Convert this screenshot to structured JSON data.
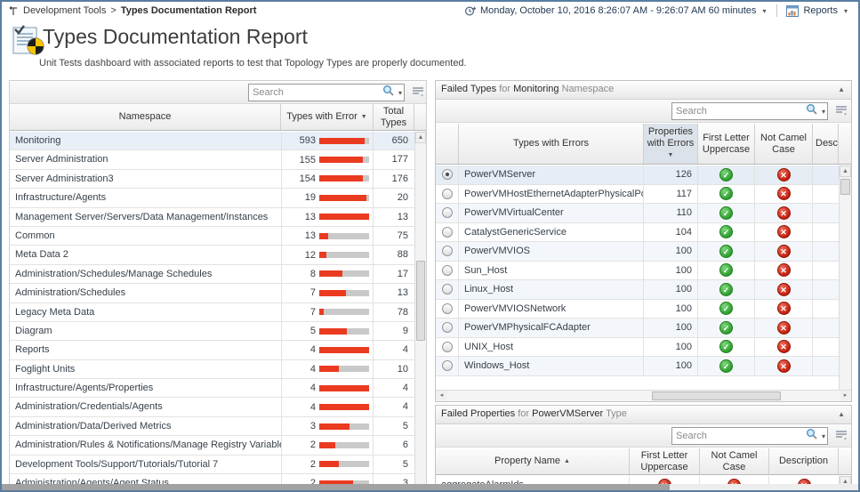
{
  "breadcrumb": {
    "parent": "Development Tools",
    "separator": ">",
    "current": "Types Documentation Report"
  },
  "topbar": {
    "time_range": "Monday, October 10, 2016 8:26:07 AM - 9:26:07 AM 60 minutes",
    "reports_label": "Reports"
  },
  "header": {
    "title": "Types Documentation Report",
    "subtitle": "Unit Tests dashboard with associated reports to test that Topology Types are properly documented."
  },
  "icons": {
    "sort_desc": "▼",
    "sort_asc": "▲",
    "collapse": "▲",
    "caret": "▾",
    "scroll_up": "▲",
    "scroll_left": "◂",
    "scroll_right": "▸",
    "pass_glyph": "✓",
    "fail_glyph": "✕"
  },
  "colors": {
    "bar_red": "#ea3a20",
    "bar_track": "#c9c9c9",
    "pass_green": "#2da02d",
    "fail_red": "#c41f0e",
    "selection": "#e6edf4",
    "frame_border": "#5a7da0"
  },
  "namespace_table": {
    "search_placeholder": "Search",
    "columns": {
      "namespace": "Namespace",
      "types_with_error": "Types with Error",
      "total_types_line1": "Total",
      "total_types_line2": "Types"
    },
    "sort": {
      "column": "types_with_error",
      "direction": "desc"
    },
    "rows": [
      {
        "namespace": "Monitoring",
        "types_with_error": 593,
        "total_types": 650,
        "selected": true
      },
      {
        "namespace": "Server Administration",
        "types_with_error": 155,
        "total_types": 177,
        "selected": false
      },
      {
        "namespace": "Server Administration3",
        "types_with_error": 154,
        "total_types": 176,
        "selected": false
      },
      {
        "namespace": "Infrastructure/Agents",
        "types_with_error": 19,
        "total_types": 20,
        "selected": false
      },
      {
        "namespace": "Management Server/Servers/Data Management/Instances",
        "types_with_error": 13,
        "total_types": 13,
        "selected": false
      },
      {
        "namespace": "Common",
        "types_with_error": 13,
        "total_types": 75,
        "selected": false
      },
      {
        "namespace": "Meta Data 2",
        "types_with_error": 12,
        "total_types": 88,
        "selected": false
      },
      {
        "namespace": "Administration/Schedules/Manage Schedules",
        "types_with_error": 8,
        "total_types": 17,
        "selected": false
      },
      {
        "namespace": "Administration/Schedules",
        "types_with_error": 7,
        "total_types": 13,
        "selected": false
      },
      {
        "namespace": "Legacy Meta Data",
        "types_with_error": 7,
        "total_types": 78,
        "selected": false
      },
      {
        "namespace": "Diagram",
        "types_with_error": 5,
        "total_types": 9,
        "selected": false
      },
      {
        "namespace": "Reports",
        "types_with_error": 4,
        "total_types": 4,
        "selected": false
      },
      {
        "namespace": "Foglight Units",
        "types_with_error": 4,
        "total_types": 10,
        "selected": false
      },
      {
        "namespace": "Infrastructure/Agents/Properties",
        "types_with_error": 4,
        "total_types": 4,
        "selected": false
      },
      {
        "namespace": "Administration/Credentials/Agents",
        "types_with_error": 4,
        "total_types": 4,
        "selected": false
      },
      {
        "namespace": "Administration/Data/Derived Metrics",
        "types_with_error": 3,
        "total_types": 5,
        "selected": false
      },
      {
        "namespace": "Administration/Rules & Notifications/Manage Registry Variables",
        "types_with_error": 2,
        "total_types": 6,
        "selected": false
      },
      {
        "namespace": "Development Tools/Support/Tutorials/Tutorial 7",
        "types_with_error": 2,
        "total_types": 5,
        "selected": false
      },
      {
        "namespace": "Administration/Agents/Agent Status",
        "types_with_error": 2,
        "total_types": 3,
        "selected": false
      }
    ]
  },
  "failed_types_panel": {
    "title": {
      "prefix": "Failed Types",
      "for": "for",
      "name": "Monitoring",
      "suffix": "Namespace"
    },
    "search_placeholder": "Search",
    "columns": {
      "types": "Types with Errors",
      "props_line1": "Properties",
      "props_line2": "with Errors",
      "first_line1": "First Letter",
      "first_line2": "Uppercase",
      "camel_line1": "Not Camel",
      "camel_line2": "Case",
      "desc": "Description"
    },
    "sort": {
      "column": "props",
      "direction": "desc"
    },
    "rows": [
      {
        "name": "PowerVMServer",
        "properties_with_errors": 126,
        "first_letter_uppercase": "pass",
        "not_camel_case": "fail",
        "selected": true
      },
      {
        "name": "PowerVMHostEthernetAdapterPhysicalPort",
        "properties_with_errors": 117,
        "first_letter_uppercase": "pass",
        "not_camel_case": "fail",
        "selected": false
      },
      {
        "name": "PowerVMVirtualCenter",
        "properties_with_errors": 110,
        "first_letter_uppercase": "pass",
        "not_camel_case": "fail",
        "selected": false
      },
      {
        "name": "CatalystGenericService",
        "properties_with_errors": 104,
        "first_letter_uppercase": "pass",
        "not_camel_case": "fail",
        "selected": false
      },
      {
        "name": "PowerVMVIOS",
        "properties_with_errors": 100,
        "first_letter_uppercase": "pass",
        "not_camel_case": "fail",
        "selected": false
      },
      {
        "name": "Sun_Host",
        "properties_with_errors": 100,
        "first_letter_uppercase": "pass",
        "not_camel_case": "fail",
        "selected": false
      },
      {
        "name": "Linux_Host",
        "properties_with_errors": 100,
        "first_letter_uppercase": "pass",
        "not_camel_case": "fail",
        "selected": false
      },
      {
        "name": "PowerVMVIOSNetwork",
        "properties_with_errors": 100,
        "first_letter_uppercase": "pass",
        "not_camel_case": "fail",
        "selected": false
      },
      {
        "name": "PowerVMPhysicalFCAdapter",
        "properties_with_errors": 100,
        "first_letter_uppercase": "pass",
        "not_camel_case": "fail",
        "selected": false
      },
      {
        "name": "UNIX_Host",
        "properties_with_errors": 100,
        "first_letter_uppercase": "pass",
        "not_camel_case": "fail",
        "selected": false
      },
      {
        "name": "Windows_Host",
        "properties_with_errors": 100,
        "first_letter_uppercase": "pass",
        "not_camel_case": "fail",
        "selected": false
      }
    ]
  },
  "failed_properties_panel": {
    "title": {
      "prefix": "Failed Properties",
      "for": "for",
      "name": "PowerVMServer",
      "suffix": "Type"
    },
    "search_placeholder": "Search",
    "columns": {
      "property_name": "Property Name",
      "first_line1": "First Letter",
      "first_line2": "Uppercase",
      "camel_line1": "Not Camel",
      "camel_line2": "Case",
      "desc": "Description"
    },
    "sort": {
      "column": "property_name",
      "direction": "asc"
    },
    "rows": [
      {
        "name": "aggregateAlarmIds",
        "first_letter_uppercase": "fail",
        "not_camel_case": "fail",
        "description": "fail"
      }
    ]
  }
}
